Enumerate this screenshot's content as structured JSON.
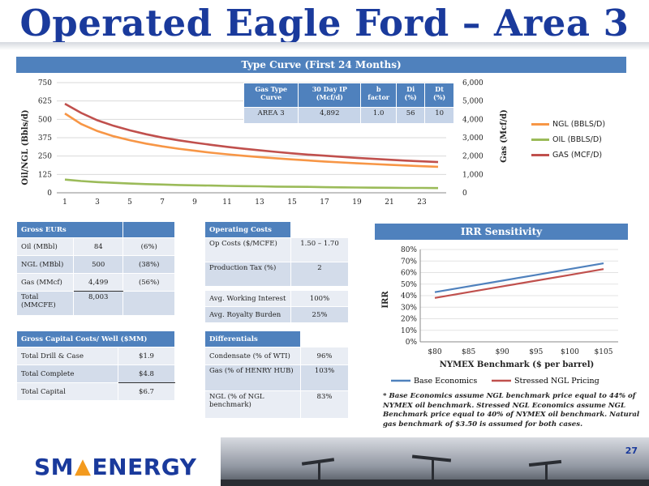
{
  "title": "Operated Eagle Ford – Area 3",
  "slide_number": "27",
  "logo": {
    "left": "SM",
    "right": "ENERGY"
  },
  "type_curve": {
    "header": "Type Curve (First 24 Months)",
    "ip_table": {
      "headers": [
        "Gas Type Curve",
        "30 Day IP (Mcf/d)",
        "b factor",
        "Di (%)",
        "Dt (%)"
      ],
      "row": [
        "AREA 3",
        "4,892",
        "1.0",
        "56",
        "10"
      ]
    },
    "legend": [
      "NGL (BBLS/D)",
      "OIL (BBLS/D)",
      "GAS (MCF/D)"
    ]
  },
  "gross_eurs": {
    "header": "Gross EURs",
    "rows": [
      [
        "Oil (MBbl)",
        "84",
        "(6%)"
      ],
      [
        "NGL (MBbl)",
        "500",
        "(38%)"
      ],
      [
        "Gas (MMcf)",
        "4,499",
        "(56%)"
      ],
      [
        "Total (MMCFE)",
        "8,003",
        ""
      ]
    ]
  },
  "capital_costs": {
    "header": "Gross Capital Costs/ Well ($MM)",
    "rows": [
      [
        "Total Drill & Case",
        "$1.9"
      ],
      [
        "Total Complete",
        "$4.8"
      ],
      [
        "Total Capital",
        "$6.7"
      ]
    ]
  },
  "operating_costs": {
    "header": "Operating Costs",
    "rows": [
      [
        "Op Costs ($/MCFE)",
        "1.50 – 1.70"
      ],
      [
        "Production Tax (%)",
        "2"
      ]
    ],
    "rows2": [
      [
        "Avg. Working Interest",
        "100%"
      ],
      [
        "Avg. Royalty Burden",
        "25%"
      ]
    ]
  },
  "differentials": {
    "header": "Differentials",
    "rows": [
      [
        "Condensate (% of WTI)",
        "96%"
      ],
      [
        "Gas  (% of HENRY HUB)",
        "103%"
      ],
      [
        "NGL  (% of NGL benchmark)",
        "83%"
      ]
    ]
  },
  "irr": {
    "header": "IRR Sensitivity",
    "legend": [
      "Base Economics",
      "Stressed NGL Pricing"
    ]
  },
  "footnote": "* Base Economics assume NGL benchmark price equal to 44% of NYMEX oil benchmark. Stressed NGL Economics assume NGL Benchmark price equal to 40% of NYMEX oil benchmark. Natural gas benchmark of $3.50 is assumed for both cases.",
  "colors": {
    "title": "#1a3a9c",
    "header": "#4f81bd",
    "ngl": "#f79646",
    "oil": "#9bbb59",
    "gas": "#c0504d",
    "base": "#4f81bd",
    "stressed": "#c0504d"
  },
  "chart_data": [
    {
      "type": "line",
      "x": [
        1,
        2,
        3,
        4,
        5,
        6,
        7,
        8,
        9,
        10,
        11,
        12,
        13,
        14,
        15,
        16,
        17,
        18,
        19,
        20,
        21,
        22,
        23,
        24
      ],
      "xticks": [
        "1",
        "3",
        "5",
        "7",
        "9",
        "11",
        "13",
        "15",
        "17",
        "19",
        "21",
        "23"
      ],
      "ylabel": "Oil/NGL (Bbls/d)",
      "y2label": "Gas (Mcf/d)",
      "ylim": [
        0,
        750
      ],
      "y2lim": [
        0,
        6000
      ],
      "yticks": [
        "0",
        "125",
        "250",
        "375",
        "500",
        "625",
        "750"
      ],
      "y2ticks": [
        "0",
        "1,000",
        "2,000",
        "3,000",
        "4,000",
        "5,000",
        "6,000"
      ],
      "legend_position": "right",
      "series": [
        {
          "name": "NGL (BBLS/D)",
          "axis": "left",
          "values": [
            540,
            468,
            420,
            385,
            358,
            335,
            316,
            300,
            286,
            273,
            262,
            252,
            243,
            235,
            227,
            220,
            213,
            207,
            201,
            196,
            191,
            186,
            181,
            177
          ]
        },
        {
          "name": "OIL (BBLS/D)",
          "axis": "left",
          "values": [
            90,
            80,
            73,
            68,
            63,
            59,
            56,
            53,
            51,
            49,
            47,
            45,
            44,
            42,
            41,
            40,
            38,
            37,
            36,
            35,
            34,
            33,
            33,
            32
          ]
        },
        {
          "name": "GAS (MCF/D)",
          "axis": "right",
          "values": [
            4850,
            4350,
            3950,
            3650,
            3400,
            3190,
            3010,
            2860,
            2730,
            2610,
            2500,
            2400,
            2310,
            2230,
            2150,
            2080,
            2020,
            1960,
            1900,
            1850,
            1800,
            1750,
            1710,
            1670
          ]
        }
      ]
    },
    {
      "type": "line",
      "categories": [
        "$80",
        "$85",
        "$90",
        "$95",
        "$100",
        "$105"
      ],
      "xlabel": "NYMEX Benchmark ($ per barrel)",
      "ylabel": "IRR",
      "ylim": [
        0,
        80
      ],
      "yticks": [
        "0%",
        "10%",
        "20%",
        "30%",
        "40%",
        "50%",
        "60%",
        "70%",
        "80%"
      ],
      "legend_position": "bottom",
      "series": [
        {
          "name": "Base Economics",
          "values": [
            43,
            48,
            53,
            58,
            63,
            68
          ]
        },
        {
          "name": "Stressed NGL Pricing",
          "values": [
            38,
            43,
            48,
            53,
            58,
            63
          ]
        }
      ]
    }
  ]
}
